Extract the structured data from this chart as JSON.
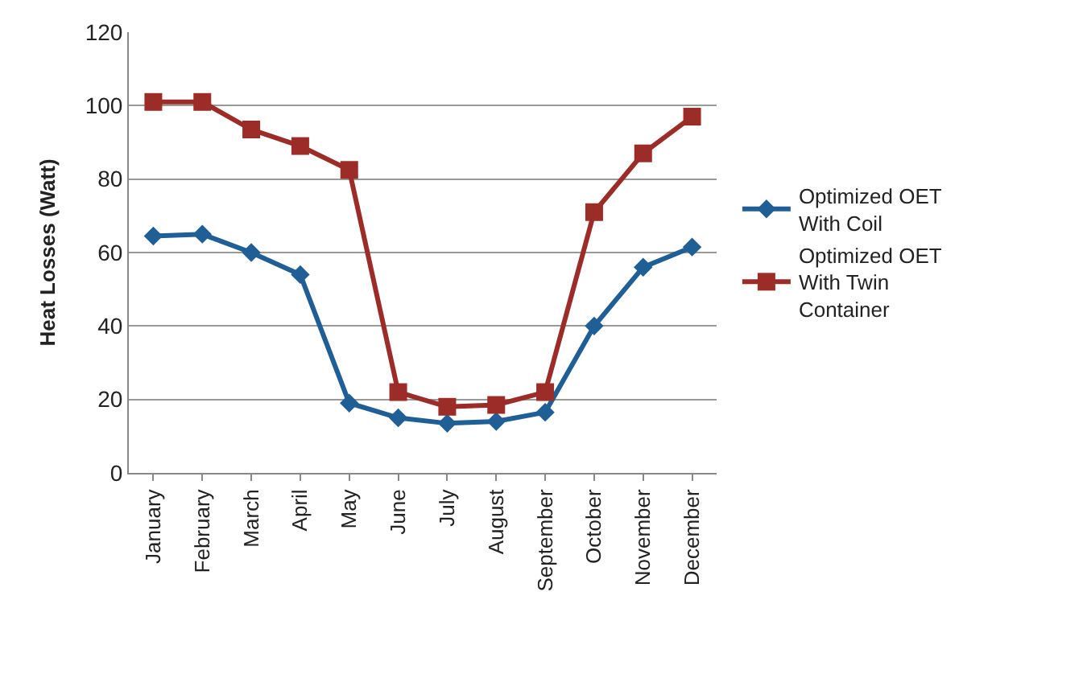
{
  "chart_data": {
    "type": "line",
    "ylabel": "Heat Losses (Watt)",
    "categories": [
      "January",
      "February",
      "March",
      "April",
      "May",
      "June",
      "July",
      "August",
      "September",
      "October",
      "November",
      "December"
    ],
    "series": [
      {
        "name": "Optimized OET With Coil",
        "color": "#1f5f96",
        "marker": "diamond",
        "values": [
          64.5,
          65,
          60,
          54,
          19,
          15,
          13.5,
          14,
          16.5,
          40,
          56,
          61.5
        ]
      },
      {
        "name": "Optimized OET With Twin Container",
        "color": "#9b2c27",
        "marker": "square",
        "values": [
          101,
          101,
          93.5,
          89,
          82.5,
          22,
          18,
          18.5,
          22,
          71,
          87,
          97
        ]
      }
    ],
    "ylim": [
      0,
      120
    ],
    "yticks": [
      0,
      20,
      40,
      60,
      80,
      100,
      120
    ],
    "grid": "y",
    "legend": "right"
  }
}
